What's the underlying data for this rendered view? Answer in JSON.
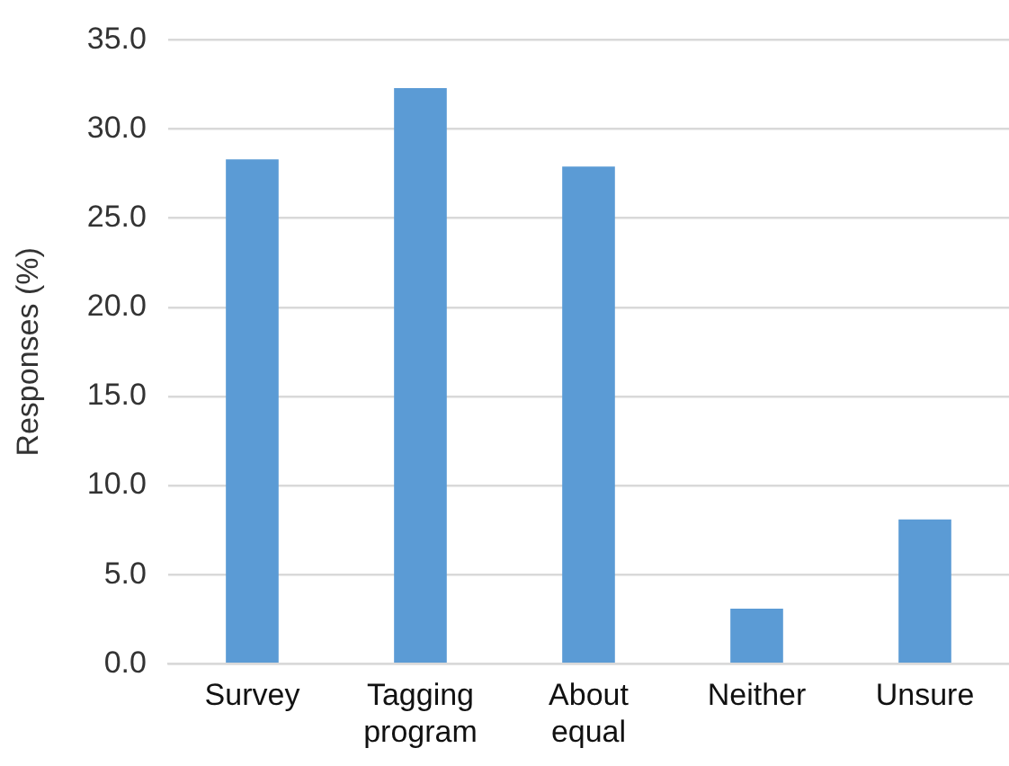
{
  "chart_data": {
    "type": "bar",
    "ylabel": "Responses (%)",
    "categories": [
      "Survey",
      "Tagging program",
      "About equal",
      "Neither",
      "Unsure"
    ],
    "values": [
      28.3,
      32.3,
      27.9,
      3.1,
      8.1
    ],
    "color": "#5b9bd5",
    "ylim": [
      0,
      35
    ],
    "yticks": [
      {
        "value": 0,
        "label": "0.0"
      },
      {
        "value": 5,
        "label": "5.0"
      },
      {
        "value": 10,
        "label": "10.0"
      },
      {
        "value": 15,
        "label": "15.0"
      },
      {
        "value": 20,
        "label": "20.0"
      },
      {
        "value": 25,
        "label": "25.0"
      },
      {
        "value": 30,
        "label": "30.0"
      },
      {
        "value": 35,
        "label": "35.0"
      }
    ],
    "grid": "y",
    "legend": false
  }
}
